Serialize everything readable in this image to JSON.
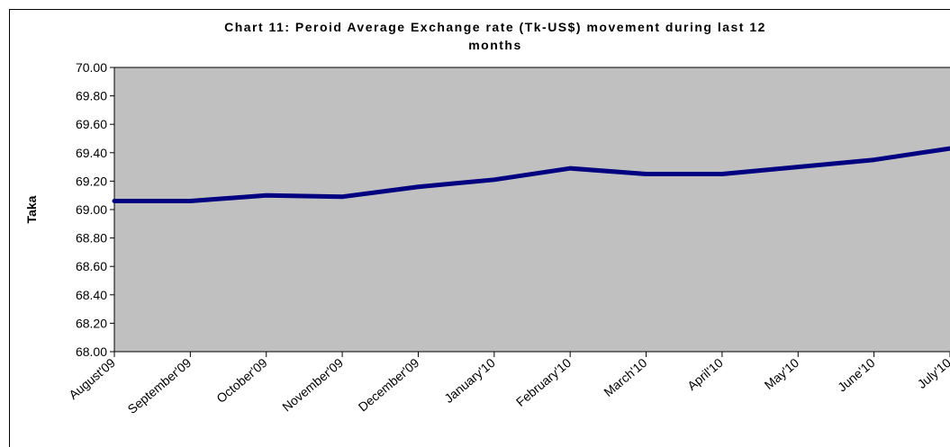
{
  "chart_data": {
    "type": "line",
    "title": "Chart 11: Peroid Average Exchange rate (Tk-US$) movement during last 12 months",
    "y_label": "Taka",
    "categories": [
      "August'09",
      "September'09",
      "October'09",
      "November'09",
      "December'09",
      "January'10",
      "February'10",
      "March'10",
      "April'10",
      "May'10",
      "June'10",
      "July'10"
    ],
    "series": [
      {
        "name": "Taka",
        "color": "#000080",
        "values": [
          69.06,
          69.06,
          69.1,
          69.09,
          69.16,
          69.21,
          69.29,
          69.25,
          69.25,
          69.3,
          69.35,
          69.43
        ]
      }
    ],
    "ylim": [
      68,
      70
    ],
    "yticks": [
      {
        "value": 68,
        "label": "68.00"
      },
      {
        "value": 68.2,
        "label": "68.20"
      },
      {
        "value": 68.4,
        "label": "68.40"
      },
      {
        "value": 68.6,
        "label": "68.60"
      },
      {
        "value": 68.8,
        "label": "68.80"
      },
      {
        "value": 69,
        "label": "69.00"
      },
      {
        "value": 69.2,
        "label": "69.20"
      },
      {
        "value": 69.4,
        "label": "69.40"
      },
      {
        "value": 69.6,
        "label": "69.60"
      },
      {
        "value": 69.8,
        "label": "69.80"
      },
      {
        "value": 70,
        "label": "70.00"
      }
    ],
    "plot_background": "#c0c0c0"
  }
}
